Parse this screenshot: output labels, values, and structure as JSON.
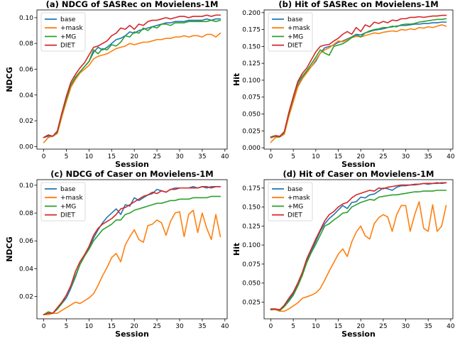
{
  "chart_data": [
    {
      "type": "line",
      "title": "(a) NDCG of SASRec on Movielens-1M",
      "xlabel": "Session",
      "ylabel": "NDCG",
      "xlim": [
        -1.5,
        40.5
      ],
      "ylim": [
        -0.002,
        0.106
      ],
      "xticks": [
        0,
        5,
        10,
        15,
        20,
        25,
        30,
        35,
        40
      ],
      "yticks": [
        0.0,
        0.02,
        0.04,
        0.06,
        0.08,
        0.1
      ],
      "yticklabels": [
        "0.00",
        "0.02",
        "0.04",
        "0.06",
        "0.08",
        "0.10"
      ],
      "legend_position": "top-left",
      "x": [
        0,
        1,
        2,
        3,
        4,
        5,
        6,
        7,
        8,
        9,
        10,
        11,
        12,
        13,
        14,
        15,
        16,
        17,
        18,
        19,
        20,
        21,
        22,
        23,
        24,
        25,
        26,
        27,
        28,
        29,
        30,
        31,
        32,
        33,
        34,
        35,
        36,
        37,
        38,
        39
      ],
      "series": [
        {
          "name": "base",
          "color": "#1f77b4",
          "values": [
            0.007,
            0.008,
            0.008,
            0.011,
            0.024,
            0.036,
            0.047,
            0.053,
            0.058,
            0.062,
            0.066,
            0.073,
            0.077,
            0.075,
            0.077,
            0.08,
            0.083,
            0.084,
            0.086,
            0.089,
            0.088,
            0.09,
            0.091,
            0.092,
            0.093,
            0.094,
            0.095,
            0.096,
            0.096,
            0.097,
            0.097,
            0.097,
            0.098,
            0.098,
            0.098,
            0.098,
            0.099,
            0.098,
            0.099,
            0.099
          ]
        },
        {
          "name": "+mask",
          "color": "#ff7f0e",
          "values": [
            0.003,
            0.007,
            0.008,
            0.01,
            0.023,
            0.035,
            0.046,
            0.052,
            0.057,
            0.06,
            0.063,
            0.068,
            0.07,
            0.071,
            0.072,
            0.074,
            0.076,
            0.077,
            0.078,
            0.08,
            0.079,
            0.08,
            0.081,
            0.081,
            0.082,
            0.083,
            0.083,
            0.084,
            0.084,
            0.085,
            0.085,
            0.086,
            0.085,
            0.086,
            0.086,
            0.085,
            0.087,
            0.087,
            0.085,
            0.088
          ]
        },
        {
          "name": "+MG",
          "color": "#2ca02c",
          "values": [
            0.007,
            0.009,
            0.008,
            0.011,
            0.025,
            0.037,
            0.048,
            0.054,
            0.058,
            0.062,
            0.066,
            0.075,
            0.072,
            0.076,
            0.075,
            0.079,
            0.078,
            0.081,
            0.086,
            0.085,
            0.089,
            0.088,
            0.092,
            0.09,
            0.093,
            0.092,
            0.095,
            0.095,
            0.094,
            0.096,
            0.096,
            0.096,
            0.097,
            0.097,
            0.097,
            0.097,
            0.097,
            0.098,
            0.097,
            0.098
          ]
        },
        {
          "name": "DIET",
          "color": "#d62728",
          "values": [
            0.007,
            0.009,
            0.008,
            0.012,
            0.026,
            0.039,
            0.05,
            0.056,
            0.061,
            0.065,
            0.071,
            0.077,
            0.078,
            0.08,
            0.082,
            0.086,
            0.088,
            0.092,
            0.091,
            0.094,
            0.091,
            0.095,
            0.094,
            0.097,
            0.098,
            0.098,
            0.099,
            0.1,
            0.099,
            0.1,
            0.101,
            0.101,
            0.1,
            0.101,
            0.101,
            0.101,
            0.102,
            0.101,
            0.102,
            0.102
          ]
        }
      ]
    },
    {
      "type": "line",
      "title": "(b) Hit of SASRec on Movielens-1M",
      "xlabel": "Session",
      "ylabel": "Hit",
      "xlim": [
        -1.5,
        40.5
      ],
      "ylim": [
        -0.002,
        0.204
      ],
      "xticks": [
        0,
        5,
        10,
        15,
        20,
        25,
        30,
        35,
        40
      ],
      "yticks": [
        0.0,
        0.025,
        0.05,
        0.075,
        0.1,
        0.125,
        0.15,
        0.175,
        0.2
      ],
      "yticklabels": [
        "0.000",
        "0.025",
        "0.050",
        "0.075",
        "0.100",
        "0.125",
        "0.150",
        "0.175",
        "0.200"
      ],
      "legend_position": "top-left",
      "x": [
        0,
        1,
        2,
        3,
        4,
        5,
        6,
        7,
        8,
        9,
        10,
        11,
        12,
        13,
        14,
        15,
        16,
        17,
        18,
        19,
        20,
        21,
        22,
        23,
        24,
        25,
        26,
        27,
        28,
        29,
        30,
        31,
        32,
        33,
        34,
        35,
        36,
        37,
        38,
        39
      ],
      "series": [
        {
          "name": "base",
          "color": "#1f77b4",
          "values": [
            0.015,
            0.017,
            0.016,
            0.022,
            0.048,
            0.07,
            0.092,
            0.103,
            0.112,
            0.12,
            0.128,
            0.14,
            0.148,
            0.15,
            0.152,
            0.156,
            0.158,
            0.161,
            0.164,
            0.168,
            0.167,
            0.17,
            0.172,
            0.174,
            0.175,
            0.176,
            0.178,
            0.179,
            0.18,
            0.181,
            0.181,
            0.182,
            0.183,
            0.183,
            0.184,
            0.184,
            0.185,
            0.185,
            0.186,
            0.186
          ]
        },
        {
          "name": "+mask",
          "color": "#ff7f0e",
          "values": [
            0.008,
            0.015,
            0.016,
            0.02,
            0.046,
            0.068,
            0.09,
            0.102,
            0.111,
            0.12,
            0.13,
            0.14,
            0.145,
            0.148,
            0.153,
            0.158,
            0.157,
            0.16,
            0.163,
            0.165,
            0.164,
            0.166,
            0.168,
            0.17,
            0.169,
            0.171,
            0.172,
            0.173,
            0.172,
            0.175,
            0.174,
            0.176,
            0.175,
            0.178,
            0.177,
            0.179,
            0.178,
            0.18,
            0.182,
            0.18
          ]
        },
        {
          "name": "+MG",
          "color": "#2ca02c",
          "values": [
            0.015,
            0.017,
            0.016,
            0.023,
            0.05,
            0.074,
            0.096,
            0.106,
            0.114,
            0.124,
            0.134,
            0.145,
            0.14,
            0.137,
            0.15,
            0.152,
            0.154,
            0.158,
            0.163,
            0.167,
            0.164,
            0.17,
            0.173,
            0.175,
            0.176,
            0.178,
            0.178,
            0.18,
            0.179,
            0.182,
            0.183,
            0.183,
            0.184,
            0.186,
            0.187,
            0.188,
            0.189,
            0.19,
            0.19,
            0.191
          ]
        },
        {
          "name": "DIET",
          "color": "#d62728",
          "values": [
            0.016,
            0.018,
            0.017,
            0.024,
            0.052,
            0.076,
            0.098,
            0.11,
            0.118,
            0.13,
            0.142,
            0.15,
            0.152,
            0.153,
            0.158,
            0.162,
            0.168,
            0.172,
            0.168,
            0.178,
            0.172,
            0.182,
            0.179,
            0.186,
            0.184,
            0.187,
            0.185,
            0.189,
            0.188,
            0.191,
            0.191,
            0.193,
            0.193,
            0.194,
            0.193,
            0.194,
            0.195,
            0.195,
            0.196,
            0.196
          ]
        }
      ]
    },
    {
      "type": "line",
      "title": "(c) NDCG of Caser on Movielens-1M",
      "xlabel": "Session",
      "ylabel": "NDCG",
      "xlim": [
        -1.5,
        40.5
      ],
      "ylim": [
        0.004,
        0.104
      ],
      "xticks": [
        0,
        5,
        10,
        15,
        20,
        25,
        30,
        35,
        40
      ],
      "yticks": [
        0.02,
        0.04,
        0.06,
        0.08,
        0.1
      ],
      "yticklabels": [
        "0.02",
        "0.04",
        "0.06",
        "0.08",
        "0.10"
      ],
      "legend_position": "top-left",
      "x": [
        0,
        1,
        2,
        3,
        4,
        5,
        6,
        7,
        8,
        9,
        10,
        11,
        12,
        13,
        14,
        15,
        16,
        17,
        18,
        19,
        20,
        21,
        22,
        23,
        24,
        25,
        26,
        27,
        28,
        29,
        30,
        31,
        32,
        33,
        34,
        35,
        36,
        37,
        38,
        39
      ],
      "series": [
        {
          "name": "base",
          "color": "#1f77b4",
          "values": [
            0.007,
            0.008,
            0.008,
            0.011,
            0.015,
            0.019,
            0.026,
            0.034,
            0.043,
            0.049,
            0.055,
            0.062,
            0.068,
            0.073,
            0.077,
            0.08,
            0.083,
            0.079,
            0.086,
            0.085,
            0.091,
            0.089,
            0.091,
            0.093,
            0.094,
            0.097,
            0.096,
            0.095,
            0.097,
            0.098,
            0.098,
            0.098,
            0.098,
            0.099,
            0.098,
            0.099,
            0.098,
            0.099,
            0.099,
            0.099
          ]
        },
        {
          "name": "+mask",
          "color": "#ff7f0e",
          "values": [
            0.007,
            0.007,
            0.008,
            0.008,
            0.01,
            0.012,
            0.014,
            0.016,
            0.015,
            0.017,
            0.019,
            0.022,
            0.028,
            0.035,
            0.041,
            0.048,
            0.051,
            0.045,
            0.057,
            0.063,
            0.068,
            0.061,
            0.059,
            0.071,
            0.072,
            0.075,
            0.073,
            0.064,
            0.074,
            0.08,
            0.081,
            0.063,
            0.079,
            0.082,
            0.066,
            0.08,
            0.069,
            0.061,
            0.079,
            0.063
          ]
        },
        {
          "name": "+MG",
          "color": "#2ca02c",
          "values": [
            0.007,
            0.009,
            0.008,
            0.011,
            0.015,
            0.021,
            0.027,
            0.035,
            0.043,
            0.049,
            0.054,
            0.06,
            0.064,
            0.068,
            0.07,
            0.072,
            0.075,
            0.075,
            0.079,
            0.08,
            0.082,
            0.083,
            0.084,
            0.085,
            0.086,
            0.087,
            0.087,
            0.088,
            0.089,
            0.089,
            0.09,
            0.09,
            0.09,
            0.091,
            0.091,
            0.091,
            0.091,
            0.092,
            0.092,
            0.092
          ]
        },
        {
          "name": "DIET",
          "color": "#d62728",
          "values": [
            0.007,
            0.008,
            0.008,
            0.012,
            0.016,
            0.021,
            0.028,
            0.038,
            0.045,
            0.05,
            0.056,
            0.064,
            0.069,
            0.072,
            0.074,
            0.076,
            0.079,
            0.083,
            0.084,
            0.086,
            0.088,
            0.09,
            0.092,
            0.093,
            0.095,
            0.094,
            0.096,
            0.095,
            0.097,
            0.097,
            0.098,
            0.098,
            0.098,
            0.098,
            0.098,
            0.099,
            0.099,
            0.098,
            0.099,
            0.099
          ]
        }
      ]
    },
    {
      "type": "line",
      "title": "(d) Hit of Caser on Movielens-1M",
      "xlabel": "Session",
      "ylabel": "Hit",
      "xlim": [
        -1.5,
        40.5
      ],
      "ylim": [
        0.003,
        0.186
      ],
      "xticks": [
        0,
        5,
        10,
        15,
        20,
        25,
        30,
        35,
        40
      ],
      "yticks": [
        0.025,
        0.05,
        0.075,
        0.1,
        0.125,
        0.15,
        0.175
      ],
      "yticklabels": [
        "0.025",
        "0.050",
        "0.075",
        "0.100",
        "0.125",
        "0.150",
        "0.175"
      ],
      "legend_position": "top-left",
      "x": [
        0,
        1,
        2,
        3,
        4,
        5,
        6,
        7,
        8,
        9,
        10,
        11,
        12,
        13,
        14,
        15,
        16,
        17,
        18,
        19,
        20,
        21,
        22,
        23,
        24,
        25,
        26,
        27,
        28,
        29,
        30,
        31,
        32,
        33,
        34,
        35,
        36,
        37,
        38,
        39
      ],
      "series": [
        {
          "name": "base",
          "color": "#1f77b4",
          "values": [
            0.015,
            0.016,
            0.014,
            0.02,
            0.028,
            0.036,
            0.048,
            0.062,
            0.08,
            0.092,
            0.105,
            0.118,
            0.128,
            0.135,
            0.14,
            0.146,
            0.152,
            0.148,
            0.156,
            0.157,
            0.163,
            0.162,
            0.166,
            0.167,
            0.171,
            0.175,
            0.174,
            0.172,
            0.176,
            0.178,
            0.178,
            0.179,
            0.179,
            0.18,
            0.181,
            0.18,
            0.181,
            0.181,
            0.182,
            0.182
          ]
        },
        {
          "name": "+mask",
          "color": "#ff7f0e",
          "values": [
            0.015,
            0.015,
            0.013,
            0.013,
            0.016,
            0.02,
            0.024,
            0.03,
            0.032,
            0.034,
            0.037,
            0.043,
            0.054,
            0.066,
            0.077,
            0.088,
            0.095,
            0.085,
            0.104,
            0.117,
            0.125,
            0.112,
            0.108,
            0.128,
            0.136,
            0.14,
            0.137,
            0.118,
            0.14,
            0.152,
            0.152,
            0.118,
            0.14,
            0.157,
            0.122,
            0.118,
            0.153,
            0.118,
            0.125,
            0.152
          ]
        },
        {
          "name": "+MG",
          "color": "#2ca02c",
          "values": [
            0.015,
            0.016,
            0.014,
            0.019,
            0.026,
            0.034,
            0.046,
            0.06,
            0.077,
            0.09,
            0.101,
            0.113,
            0.125,
            0.128,
            0.133,
            0.137,
            0.142,
            0.143,
            0.15,
            0.153,
            0.156,
            0.158,
            0.16,
            0.159,
            0.163,
            0.164,
            0.165,
            0.166,
            0.166,
            0.167,
            0.168,
            0.169,
            0.17,
            0.17,
            0.171,
            0.171,
            0.171,
            0.172,
            0.172,
            0.172
          ]
        },
        {
          "name": "DIET",
          "color": "#d62728",
          "values": [
            0.016,
            0.016,
            0.015,
            0.021,
            0.03,
            0.038,
            0.05,
            0.064,
            0.082,
            0.095,
            0.108,
            0.12,
            0.132,
            0.14,
            0.144,
            0.15,
            0.154,
            0.156,
            0.162,
            0.166,
            0.168,
            0.17,
            0.172,
            0.171,
            0.175,
            0.174,
            0.176,
            0.177,
            0.178,
            0.179,
            0.179,
            0.179,
            0.18,
            0.18,
            0.181,
            0.181,
            0.181,
            0.182,
            0.181,
            0.182
          ]
        }
      ]
    }
  ]
}
